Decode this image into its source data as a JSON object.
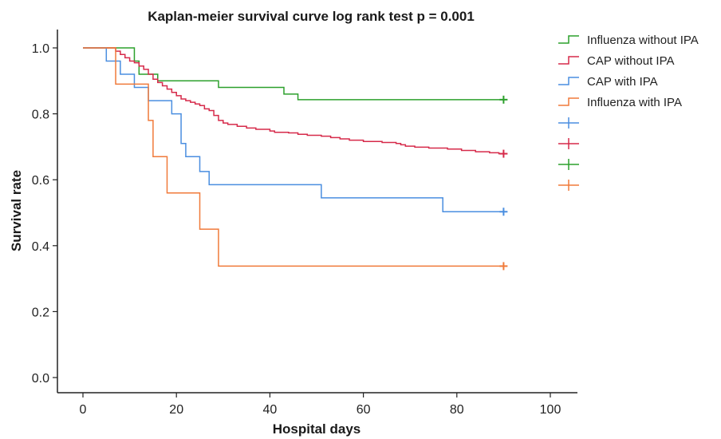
{
  "chart_data": {
    "type": "line",
    "title": "Kaplan-meier survival curve log rank test p = 0.001",
    "xlabel": "Hospital days",
    "ylabel": "Survival rate",
    "xlim": [
      0,
      100
    ],
    "ylim": [
      0,
      1.0
    ],
    "x_ticks": [
      0,
      20,
      40,
      60,
      80,
      100
    ],
    "y_ticks": [
      0.0,
      0.2,
      0.4,
      0.6,
      0.8,
      1.0
    ],
    "x_tick_labels": [
      "0",
      "20",
      "40",
      "60",
      "80",
      "100"
    ],
    "y_tick_labels": [
      "0.0",
      "0.2",
      "0.4",
      "0.6",
      "0.8",
      "1.0"
    ],
    "grid": false,
    "legend_position": "top-right",
    "series": [
      {
        "name": "Influenza without IPA",
        "color": "#2ca02c",
        "steps": [
          [
            0,
            1.0
          ],
          [
            11,
            0.96
          ],
          [
            12,
            0.92
          ],
          [
            16,
            0.9
          ],
          [
            29,
            0.88
          ],
          [
            43,
            0.86
          ],
          [
            46,
            0.843
          ],
          [
            90,
            0.843
          ]
        ],
        "censor": [
          90,
          0.843
        ]
      },
      {
        "name": "CAP without IPA",
        "color": "#d62a4a",
        "steps": [
          [
            0,
            1.0
          ],
          [
            7,
            0.99
          ],
          [
            8,
            0.98
          ],
          [
            9,
            0.97
          ],
          [
            10,
            0.96
          ],
          [
            11,
            0.955
          ],
          [
            12,
            0.945
          ],
          [
            13,
            0.935
          ],
          [
            14,
            0.92
          ],
          [
            15,
            0.905
          ],
          [
            16,
            0.895
          ],
          [
            17,
            0.885
          ],
          [
            18,
            0.875
          ],
          [
            19,
            0.865
          ],
          [
            20,
            0.855
          ],
          [
            21,
            0.845
          ],
          [
            22,
            0.84
          ],
          [
            23,
            0.835
          ],
          [
            24,
            0.83
          ],
          [
            25,
            0.825
          ],
          [
            26,
            0.815
          ],
          [
            27,
            0.81
          ],
          [
            28,
            0.795
          ],
          [
            29,
            0.78
          ],
          [
            30,
            0.772
          ],
          [
            31,
            0.768
          ],
          [
            33,
            0.762
          ],
          [
            35,
            0.757
          ],
          [
            37,
            0.753
          ],
          [
            40,
            0.748
          ],
          [
            41,
            0.744
          ],
          [
            44,
            0.742
          ],
          [
            46,
            0.738
          ],
          [
            48,
            0.735
          ],
          [
            51,
            0.732
          ],
          [
            53,
            0.728
          ],
          [
            55,
            0.724
          ],
          [
            57,
            0.72
          ],
          [
            60,
            0.716
          ],
          [
            64,
            0.713
          ],
          [
            67,
            0.71
          ],
          [
            68,
            0.706
          ],
          [
            69,
            0.702
          ],
          [
            71,
            0.699
          ],
          [
            74,
            0.696
          ],
          [
            78,
            0.693
          ],
          [
            81,
            0.689
          ],
          [
            84,
            0.685
          ],
          [
            87,
            0.682
          ],
          [
            89,
            0.679
          ],
          [
            90,
            0.679
          ]
        ],
        "censor": [
          90,
          0.679
        ]
      },
      {
        "name": "CAP with IPA",
        "color": "#4a8ee0",
        "steps": [
          [
            0,
            1.0
          ],
          [
            5,
            0.96
          ],
          [
            8,
            0.92
          ],
          [
            11,
            0.88
          ],
          [
            14,
            0.84
          ],
          [
            19,
            0.8
          ],
          [
            21,
            0.71
          ],
          [
            22,
            0.67
          ],
          [
            25,
            0.625
          ],
          [
            27,
            0.585
          ],
          [
            51,
            0.545
          ],
          [
            77,
            0.503
          ],
          [
            90,
            0.503
          ]
        ],
        "censor": [
          90,
          0.503
        ]
      },
      {
        "name": "Influenza with IPA",
        "color": "#f07a3a",
        "steps": [
          [
            0,
            1.0
          ],
          [
            7,
            0.89
          ],
          [
            14,
            0.78
          ],
          [
            15,
            0.67
          ],
          [
            18,
            0.56
          ],
          [
            25,
            0.45
          ],
          [
            29,
            0.338
          ],
          [
            90,
            0.338
          ]
        ],
        "censor": [
          90,
          0.338
        ]
      }
    ],
    "legend": [
      {
        "label": "Influenza without IPA",
        "color": "#2ca02c",
        "marker": "step"
      },
      {
        "label": "CAP without IPA",
        "color": "#d62a4a",
        "marker": "step"
      },
      {
        "label": "CAP with IPA",
        "color": "#4a8ee0",
        "marker": "step"
      },
      {
        "label": "Influenza with IPA",
        "color": "#f07a3a",
        "marker": "step"
      },
      {
        "label": "",
        "color": "#4a8ee0",
        "marker": "cross"
      },
      {
        "label": "",
        "color": "#d62a4a",
        "marker": "cross"
      },
      {
        "label": "",
        "color": "#2ca02c",
        "marker": "cross"
      },
      {
        "label": "",
        "color": "#f07a3a",
        "marker": "cross"
      }
    ]
  }
}
